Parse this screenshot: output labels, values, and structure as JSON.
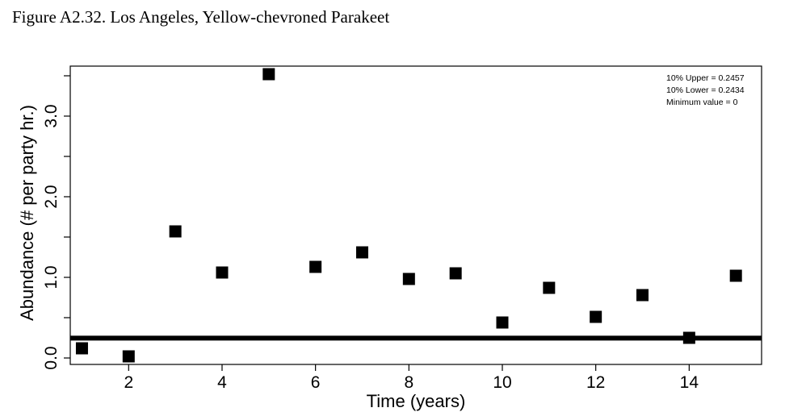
{
  "figure": {
    "caption": "Figure A2.32. Los Angeles, Yellow-chevroned Parakeet"
  },
  "chart_data": {
    "type": "scatter",
    "title": "",
    "xlabel": "Time (years)",
    "ylabel": "Abundance (# per party hr.)",
    "xlim": [
      0.75,
      15.55
    ],
    "ylim": [
      -0.08,
      3.62
    ],
    "x_ticks": [
      2,
      4,
      6,
      8,
      10,
      12,
      14
    ],
    "y_ticks": [
      0.0,
      0.5,
      1.0,
      1.5,
      2.0,
      2.5,
      3.0,
      3.5
    ],
    "y_tick_labels": [
      {
        "value": 0.0,
        "label": "0.0"
      },
      {
        "value": 1.0,
        "label": "1.0"
      },
      {
        "value": 2.0,
        "label": "2.0"
      },
      {
        "value": 3.0,
        "label": "3.0"
      }
    ],
    "grid": false,
    "marker": "square",
    "marker_color": "#000000",
    "points": [
      {
        "x": 1,
        "y": 0.12
      },
      {
        "x": 2,
        "y": 0.02
      },
      {
        "x": 3,
        "y": 1.57
      },
      {
        "x": 4,
        "y": 1.06
      },
      {
        "x": 5,
        "y": 3.52
      },
      {
        "x": 6,
        "y": 1.13
      },
      {
        "x": 7,
        "y": 1.31
      },
      {
        "x": 8,
        "y": 0.98
      },
      {
        "x": 9,
        "y": 1.05
      },
      {
        "x": 10,
        "y": 0.44
      },
      {
        "x": 11,
        "y": 0.87
      },
      {
        "x": 12,
        "y": 0.51
      },
      {
        "x": 13,
        "y": 0.78
      },
      {
        "x": 14,
        "y": 0.25
      },
      {
        "x": 15,
        "y": 1.02
      }
    ],
    "reference_line": {
      "y": 0.2457,
      "color": "#000000"
    },
    "annotations": [
      "10% Upper =  0.2457",
      "10% Lower =  0.2434",
      "Minimum value =  0"
    ],
    "annotation_position": "top-right"
  }
}
